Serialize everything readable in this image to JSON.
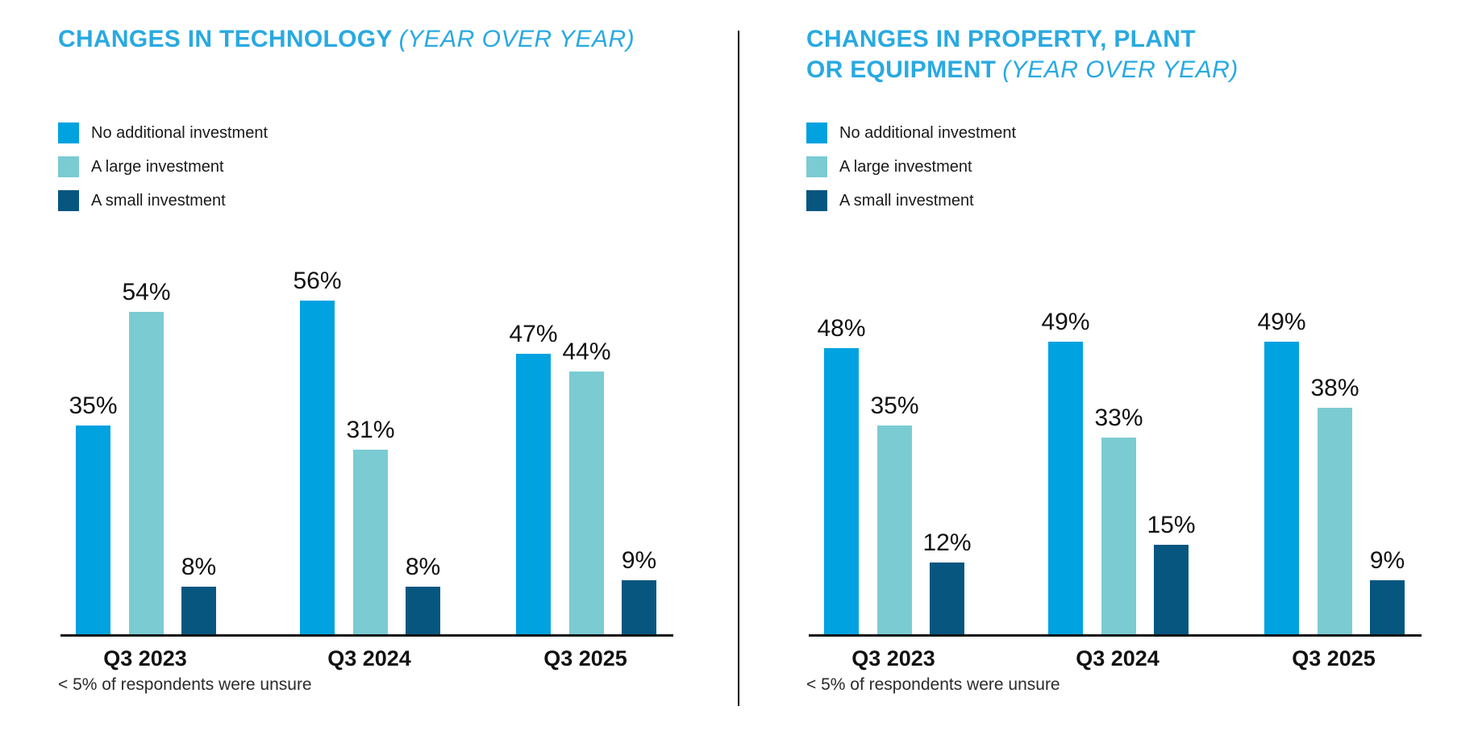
{
  "theme": {
    "title_color": "#29A9E1",
    "bar_blue": "#00A2E0",
    "bar_teal": "#7BCBD3",
    "bar_navy": "#075680",
    "text_color": "#1A1A1A",
    "axis_color": "#111111"
  },
  "chart_data": [
    {
      "type": "bar",
      "title": "CHANGES IN TECHNOLOGY (YEAR OVER YEAR)",
      "title_lines": [
        {
          "bold": "CHANGES IN TECHNOLOGY",
          "italic": "(YEAR OVER YEAR)"
        },
        {
          "bold": "",
          "italic": ""
        }
      ],
      "categories": [
        "Q3 2023",
        "Q3 2024",
        "Q3 2025"
      ],
      "series": [
        {
          "name": "No additional investment",
          "color": "#00A2E0",
          "values": [
            35,
            56,
            47
          ]
        },
        {
          "name": "A large investment",
          "color": "#7BCBD3",
          "values": [
            54,
            31,
            44
          ]
        },
        {
          "name": "A small investment",
          "color": "#075680",
          "values": [
            8,
            8,
            9
          ]
        }
      ],
      "value_suffix": "%",
      "xlabel": "",
      "ylabel": "",
      "ylim": [
        0,
        60
      ],
      "grid": false,
      "legend_position": "top-left",
      "footnote": "< 5% of respondents were unsure"
    },
    {
      "type": "bar",
      "title": "CHANGES IN PROPERTY, PLANT OR EQUIPMENT (YEAR OVER YEAR)",
      "title_lines": [
        {
          "bold": "CHANGES IN PROPERTY, PLANT",
          "italic": ""
        },
        {
          "bold": "OR EQUIPMENT",
          "italic": "(YEAR OVER YEAR)"
        }
      ],
      "categories": [
        "Q3 2023",
        "Q3 2024",
        "Q3 2025"
      ],
      "series": [
        {
          "name": "No additional investment",
          "color": "#00A2E0",
          "values": [
            48,
            49,
            49
          ]
        },
        {
          "name": "A large investment",
          "color": "#7BCBD3",
          "values": [
            35,
            33,
            38
          ]
        },
        {
          "name": "A small investment",
          "color": "#075680",
          "values": [
            12,
            15,
            9
          ]
        }
      ],
      "value_suffix": "%",
      "xlabel": "",
      "ylabel": "",
      "ylim": [
        0,
        60
      ],
      "grid": false,
      "legend_position": "top-left",
      "footnote": "< 5% of respondents were unsure"
    }
  ]
}
